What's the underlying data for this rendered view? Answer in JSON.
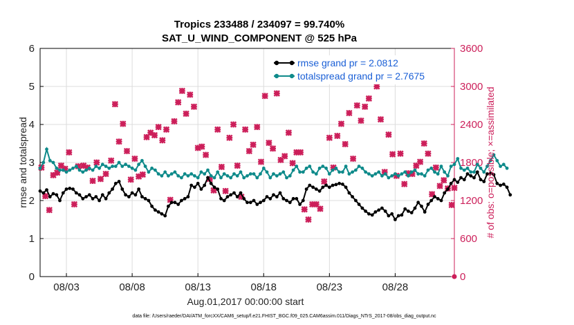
{
  "chart_data": {
    "type": "line",
    "title": "Tropics 233488 / 234097 = 99.740%",
    "subtitle": "SAT_U_WIND_COMPONENT @ 525 hPa",
    "xlabel": "Aug.01,2017 00:00:00 start",
    "ylabel": "rmse and totalspread",
    "ylabel_right": "# of obs: o=possible; ×=assimilated",
    "xlim": [
      0,
      31.5
    ],
    "ylim": [
      0,
      6
    ],
    "ylim_right": [
      0,
      3600
    ],
    "x_ticks": [
      2,
      7,
      12,
      17,
      22,
      27
    ],
    "x_tick_labels": [
      "08/03",
      "08/08",
      "08/13",
      "08/18",
      "08/23",
      "08/28"
    ],
    "y_ticks": [
      0,
      1,
      2,
      3,
      4,
      5,
      6
    ],
    "y_ticks_right": [
      0,
      600,
      1200,
      1800,
      2400,
      3000,
      3600
    ],
    "grid": true,
    "legend_position": "top-right",
    "series": [
      {
        "name": "rmse grand pr = 2.0812",
        "color": "#000000",
        "marker": "circle",
        "axis": "left",
        "values": [
          2.25,
          2.2,
          2.28,
          2.1,
          2.18,
          2.15,
          2.0,
          2.2,
          2.3,
          2.32,
          2.3,
          2.2,
          2.15,
          2.05,
          2.1,
          2.15,
          2.05,
          2.1,
          2.0,
          2.15,
          2.05,
          2.2,
          2.3,
          2.45,
          2.5,
          2.3,
          2.15,
          2.1,
          2.2,
          2.15,
          2.3,
          2.1,
          2.05,
          2.0,
          1.85,
          1.75,
          1.7,
          1.65,
          1.6,
          1.85,
          1.95,
          1.95,
          1.9,
          2.0,
          2.05,
          2.1,
          2.4,
          2.35,
          2.45,
          2.3,
          2.4,
          2.6,
          2.45,
          2.35,
          2.3,
          2.05,
          2.0,
          2.1,
          2.15,
          2.2,
          2.1,
          2.2,
          2.05,
          1.95,
          1.95,
          2.0,
          1.9,
          1.95,
          2.0,
          2.1,
          2.05,
          2.15,
          2.1,
          2.2,
          2.05,
          2.0,
          1.95,
          2.05,
          2.05,
          1.9,
          2.0,
          2.3,
          2.4,
          2.35,
          2.3,
          2.25,
          2.35,
          2.4,
          2.35,
          2.4,
          2.42,
          2.45,
          2.43,
          2.35,
          2.2,
          2.1,
          2.0,
          1.9,
          1.8,
          1.72,
          1.65,
          1.62,
          1.7,
          1.75,
          1.8,
          1.72,
          1.6,
          1.65,
          1.5,
          1.6,
          1.62,
          1.78,
          1.72,
          1.68,
          1.8,
          1.95,
          1.85,
          1.7,
          1.9,
          2.0,
          2.1,
          2.05,
          2.0,
          2.2,
          2.3,
          2.45,
          2.55,
          2.48,
          2.6,
          2.55,
          2.7,
          2.65,
          2.6,
          2.75,
          2.55,
          2.5,
          2.7,
          2.72,
          2.68,
          2.45,
          2.4,
          2.43,
          2.35,
          2.15
        ],
        "x_start": 0,
        "x_step": 0.25
      },
      {
        "name": "totalspread grand pr = 2.7675",
        "color": "#0e8a8a",
        "marker": "circle",
        "axis": "left",
        "values": [
          2.85,
          3.0,
          3.35,
          3.05,
          3.0,
          2.85,
          2.8,
          2.8,
          2.75,
          2.8,
          2.85,
          2.9,
          2.8,
          2.75,
          2.8,
          2.85,
          2.8,
          2.9,
          2.85,
          2.95,
          2.9,
          2.85,
          2.9,
          2.9,
          3.0,
          2.9,
          2.95,
          2.9,
          2.85,
          2.8,
          2.95,
          3.05,
          2.9,
          2.75,
          2.85,
          2.8,
          2.7,
          2.65,
          2.75,
          2.65,
          2.7,
          2.75,
          2.65,
          2.6,
          2.7,
          2.65,
          2.7,
          2.65,
          2.6,
          2.75,
          2.7,
          2.8,
          2.65,
          2.6,
          2.75,
          2.6,
          2.7,
          2.65,
          2.6,
          2.7,
          2.65,
          2.75,
          2.6,
          2.65,
          2.7,
          2.7,
          2.6,
          2.7,
          2.85,
          2.75,
          2.6,
          2.7,
          2.65,
          2.7,
          2.75,
          2.6,
          2.65,
          2.8,
          2.9,
          2.75,
          2.75,
          2.85,
          2.9,
          2.75,
          2.7,
          2.85,
          2.9,
          2.85,
          2.7,
          2.8,
          2.85,
          2.75,
          2.75,
          2.9,
          2.7,
          2.75,
          2.8,
          2.9,
          2.85,
          2.75,
          2.7,
          2.65,
          2.7,
          2.75,
          2.65,
          2.7,
          2.6,
          2.65,
          2.7,
          2.65,
          2.7,
          2.75,
          2.65,
          2.75,
          2.8,
          2.7,
          2.7,
          2.65,
          2.8,
          2.85,
          2.75,
          2.7,
          2.9,
          2.75,
          2.65,
          2.9,
          2.95,
          3.1,
          2.85,
          2.8,
          2.85,
          2.75,
          2.75,
          2.95,
          2.85,
          2.75,
          2.9,
          3.05,
          3.2,
          3.05,
          2.9,
          2.95,
          2.85
        ],
        "x_start": 0,
        "x_step": 0.25
      }
    ],
    "obs_assimilated": {
      "axis": "right",
      "marker": "x",
      "color": "#cc1f5a",
      "points": [
        [
          0.1,
          1720
        ],
        [
          0.4,
          1270
        ],
        [
          0.7,
          1050
        ],
        [
          1.0,
          1600
        ],
        [
          1.3,
          1640
        ],
        [
          1.6,
          1750
        ],
        [
          1.9,
          1700
        ],
        [
          2.2,
          1960
        ],
        [
          2.6,
          1140
        ],
        [
          2.9,
          1740
        ],
        [
          3.3,
          1750
        ],
        [
          3.6,
          1720
        ],
        [
          4.0,
          1510
        ],
        [
          4.3,
          1800
        ],
        [
          4.6,
          1540
        ],
        [
          5.0,
          1620
        ],
        [
          5.4,
          1830
        ],
        [
          5.7,
          2720
        ],
        [
          6.0,
          2130
        ],
        [
          6.3,
          2410
        ],
        [
          6.6,
          1980
        ],
        [
          6.9,
          1530
        ],
        [
          7.2,
          1860
        ],
        [
          7.5,
          1580
        ],
        [
          7.8,
          1610
        ],
        [
          8.1,
          2200
        ],
        [
          8.4,
          2270
        ],
        [
          8.7,
          2230
        ],
        [
          9.0,
          2360
        ],
        [
          9.3,
          2150
        ],
        [
          9.6,
          2320
        ],
        [
          9.9,
          1210
        ],
        [
          10.2,
          2450
        ],
        [
          10.5,
          2750
        ],
        [
          10.8,
          2930
        ],
        [
          11.1,
          2570
        ],
        [
          11.4,
          2870
        ],
        [
          11.7,
          2680
        ],
        [
          12.0,
          2030
        ],
        [
          12.3,
          2050
        ],
        [
          12.6,
          1920
        ],
        [
          12.9,
          1540
        ],
        [
          13.2,
          1360
        ],
        [
          13.5,
          2320
        ],
        [
          13.8,
          1730
        ],
        [
          14.1,
          1350
        ],
        [
          14.4,
          2190
        ],
        [
          14.7,
          2400
        ],
        [
          15.0,
          1750
        ],
        [
          15.3,
          1260
        ],
        [
          15.6,
          2320
        ],
        [
          15.9,
          1980
        ],
        [
          16.2,
          2080
        ],
        [
          16.5,
          2360
        ],
        [
          16.8,
          1810
        ],
        [
          17.1,
          2850
        ],
        [
          17.4,
          2110
        ],
        [
          17.7,
          2020
        ],
        [
          18.0,
          2890
        ],
        [
          18.3,
          1840
        ],
        [
          18.6,
          1900
        ],
        [
          18.9,
          2270
        ],
        [
          19.2,
          1790
        ],
        [
          19.5,
          1960
        ],
        [
          19.8,
          1960
        ],
        [
          20.1,
          1060
        ],
        [
          20.4,
          900
        ],
        [
          20.7,
          1140
        ],
        [
          21.0,
          1140
        ],
        [
          21.3,
          1070
        ],
        [
          21.6,
          1500
        ],
        [
          22.0,
          2190
        ],
        [
          22.3,
          1720
        ],
        [
          22.6,
          2220
        ],
        [
          22.9,
          2410
        ],
        [
          23.2,
          2090
        ],
        [
          23.5,
          2580
        ],
        [
          23.8,
          1860
        ],
        [
          24.1,
          2700
        ],
        [
          24.4,
          2460
        ],
        [
          24.7,
          2680
        ],
        [
          25.0,
          2810
        ],
        [
          25.3,
          3370
        ],
        [
          25.6,
          3000
        ],
        [
          25.9,
          2480
        ],
        [
          26.2,
          1650
        ],
        [
          26.5,
          2240
        ],
        [
          26.8,
          1930
        ],
        [
          27.1,
          1590
        ],
        [
          27.4,
          1940
        ],
        [
          27.7,
          1460
        ],
        [
          28.0,
          1630
        ],
        [
          28.3,
          1620
        ],
        [
          28.6,
          1750
        ],
        [
          28.9,
          1810
        ],
        [
          29.2,
          2100
        ],
        [
          29.5,
          1940
        ],
        [
          29.8,
          1300
        ],
        [
          30.1,
          1720
        ],
        [
          30.4,
          1430
        ],
        [
          30.7,
          1520
        ],
        [
          31.0,
          1390
        ],
        [
          31.3,
          1130
        ],
        [
          31.5,
          1400
        ]
      ]
    },
    "obs_possible": {
      "axis": "right",
      "marker": "o",
      "color": "#cc1f5a",
      "points": [
        [
          31.5,
          0
        ]
      ]
    }
  },
  "footer": "data file: /Users/raeder/DAI/ATM_forcXX/CAM6_setup/f.e21.FHIST_BGC.f09_025.CAM6assim.011/Diags_NTrS_2017-08/obs_diag_output.nc"
}
